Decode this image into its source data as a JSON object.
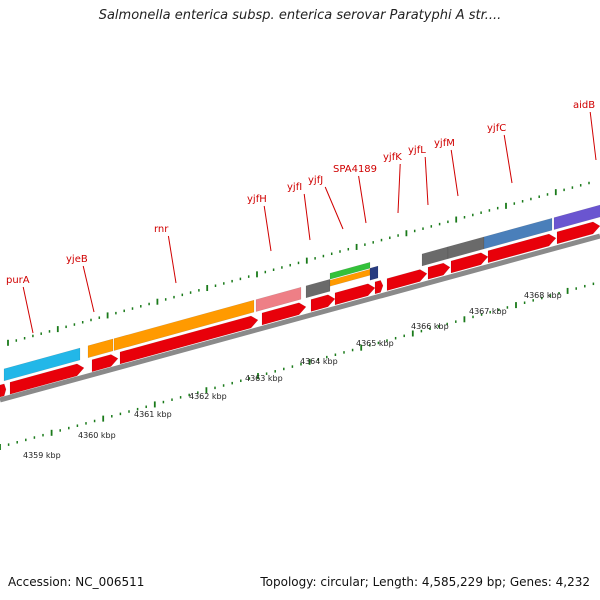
{
  "title": "Salmonella enterica subsp. enterica serovar Paratyphi A str....",
  "footer": {
    "accession": "Accession: NC_006511",
    "topology": "Topology: circular; Length: 4,585,229 bp; Genes: 4,232"
  },
  "genes": [
    {
      "name": "purA"
    },
    {
      "name": "yjeB"
    },
    {
      "name": "rnr"
    },
    {
      "name": "yjfH"
    },
    {
      "name": "yjfI"
    },
    {
      "name": "yjfJ"
    },
    {
      "name": "SPA4189"
    },
    {
      "name": "yjfK"
    },
    {
      "name": "yjfL"
    },
    {
      "name": "yjfM"
    },
    {
      "name": "yjfC"
    },
    {
      "name": "aidB"
    }
  ],
  "scale_labels": [
    "4359 kbp",
    "4360 kbp",
    "4361 kbp",
    "4362 kbp",
    "4363 kbp",
    "4364 kbp",
    "4365 kbp",
    "4366 kbp",
    "4367 kbp",
    "4368 kbp"
  ],
  "colors": {
    "label": "#d00000",
    "cds": "#e8000a",
    "backbone": "#8a8a8a",
    "tick": "#1a7a1a",
    "blue": "#22b7e8",
    "orange": "#ff9a00",
    "pink": "#ee7f86",
    "gray": "#6a6a6a",
    "green": "#33c13a",
    "navy": "#283c80",
    "steel": "#4a7fba",
    "purple": "#6a55d0"
  }
}
